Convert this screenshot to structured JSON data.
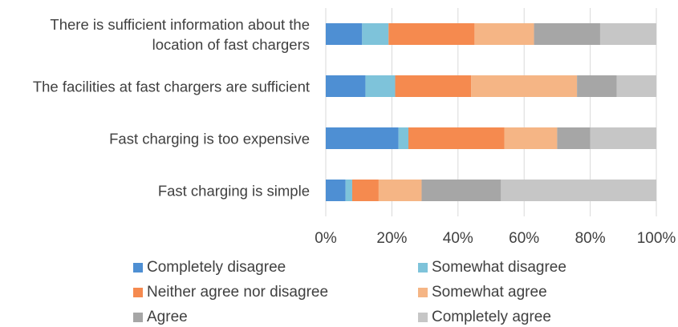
{
  "chart_data": {
    "type": "stacked_barh",
    "categories": [
      "There is sufficient information about the location of fast chargers",
      "The facilities at fast chargers are sufficient",
      "Fast charging is too expensive",
      "Fast charging is simple"
    ],
    "series": [
      {
        "name": "Completely disagree",
        "color": "#4e8fd3",
        "values": [
          11,
          12,
          22,
          6
        ]
      },
      {
        "name": "Somewhat disagree",
        "color": "#7ec3da",
        "values": [
          8,
          9,
          3,
          2
        ]
      },
      {
        "name": "Neither agree nor disagree",
        "color": "#f58a4f",
        "values": [
          26,
          23,
          29,
          8
        ]
      },
      {
        "name": "Somewhat agree",
        "color": "#f5b585",
        "values": [
          18,
          32,
          16,
          13
        ]
      },
      {
        "name": "Agree",
        "color": "#a6a6a6",
        "values": [
          20,
          12,
          10,
          24
        ]
      },
      {
        "name": "Completely agree",
        "color": "#c6c6c6",
        "values": [
          17,
          12,
          20,
          47
        ]
      }
    ],
    "xlim": [
      0,
      100
    ],
    "xticks": [
      {
        "value": 0,
        "label": "0%"
      },
      {
        "value": 20,
        "label": "20%"
      },
      {
        "value": 40,
        "label": "40%"
      },
      {
        "value": 60,
        "label": "60%"
      },
      {
        "value": 80,
        "label": "80%"
      },
      {
        "value": 100,
        "label": "100%"
      }
    ],
    "grid": true
  }
}
